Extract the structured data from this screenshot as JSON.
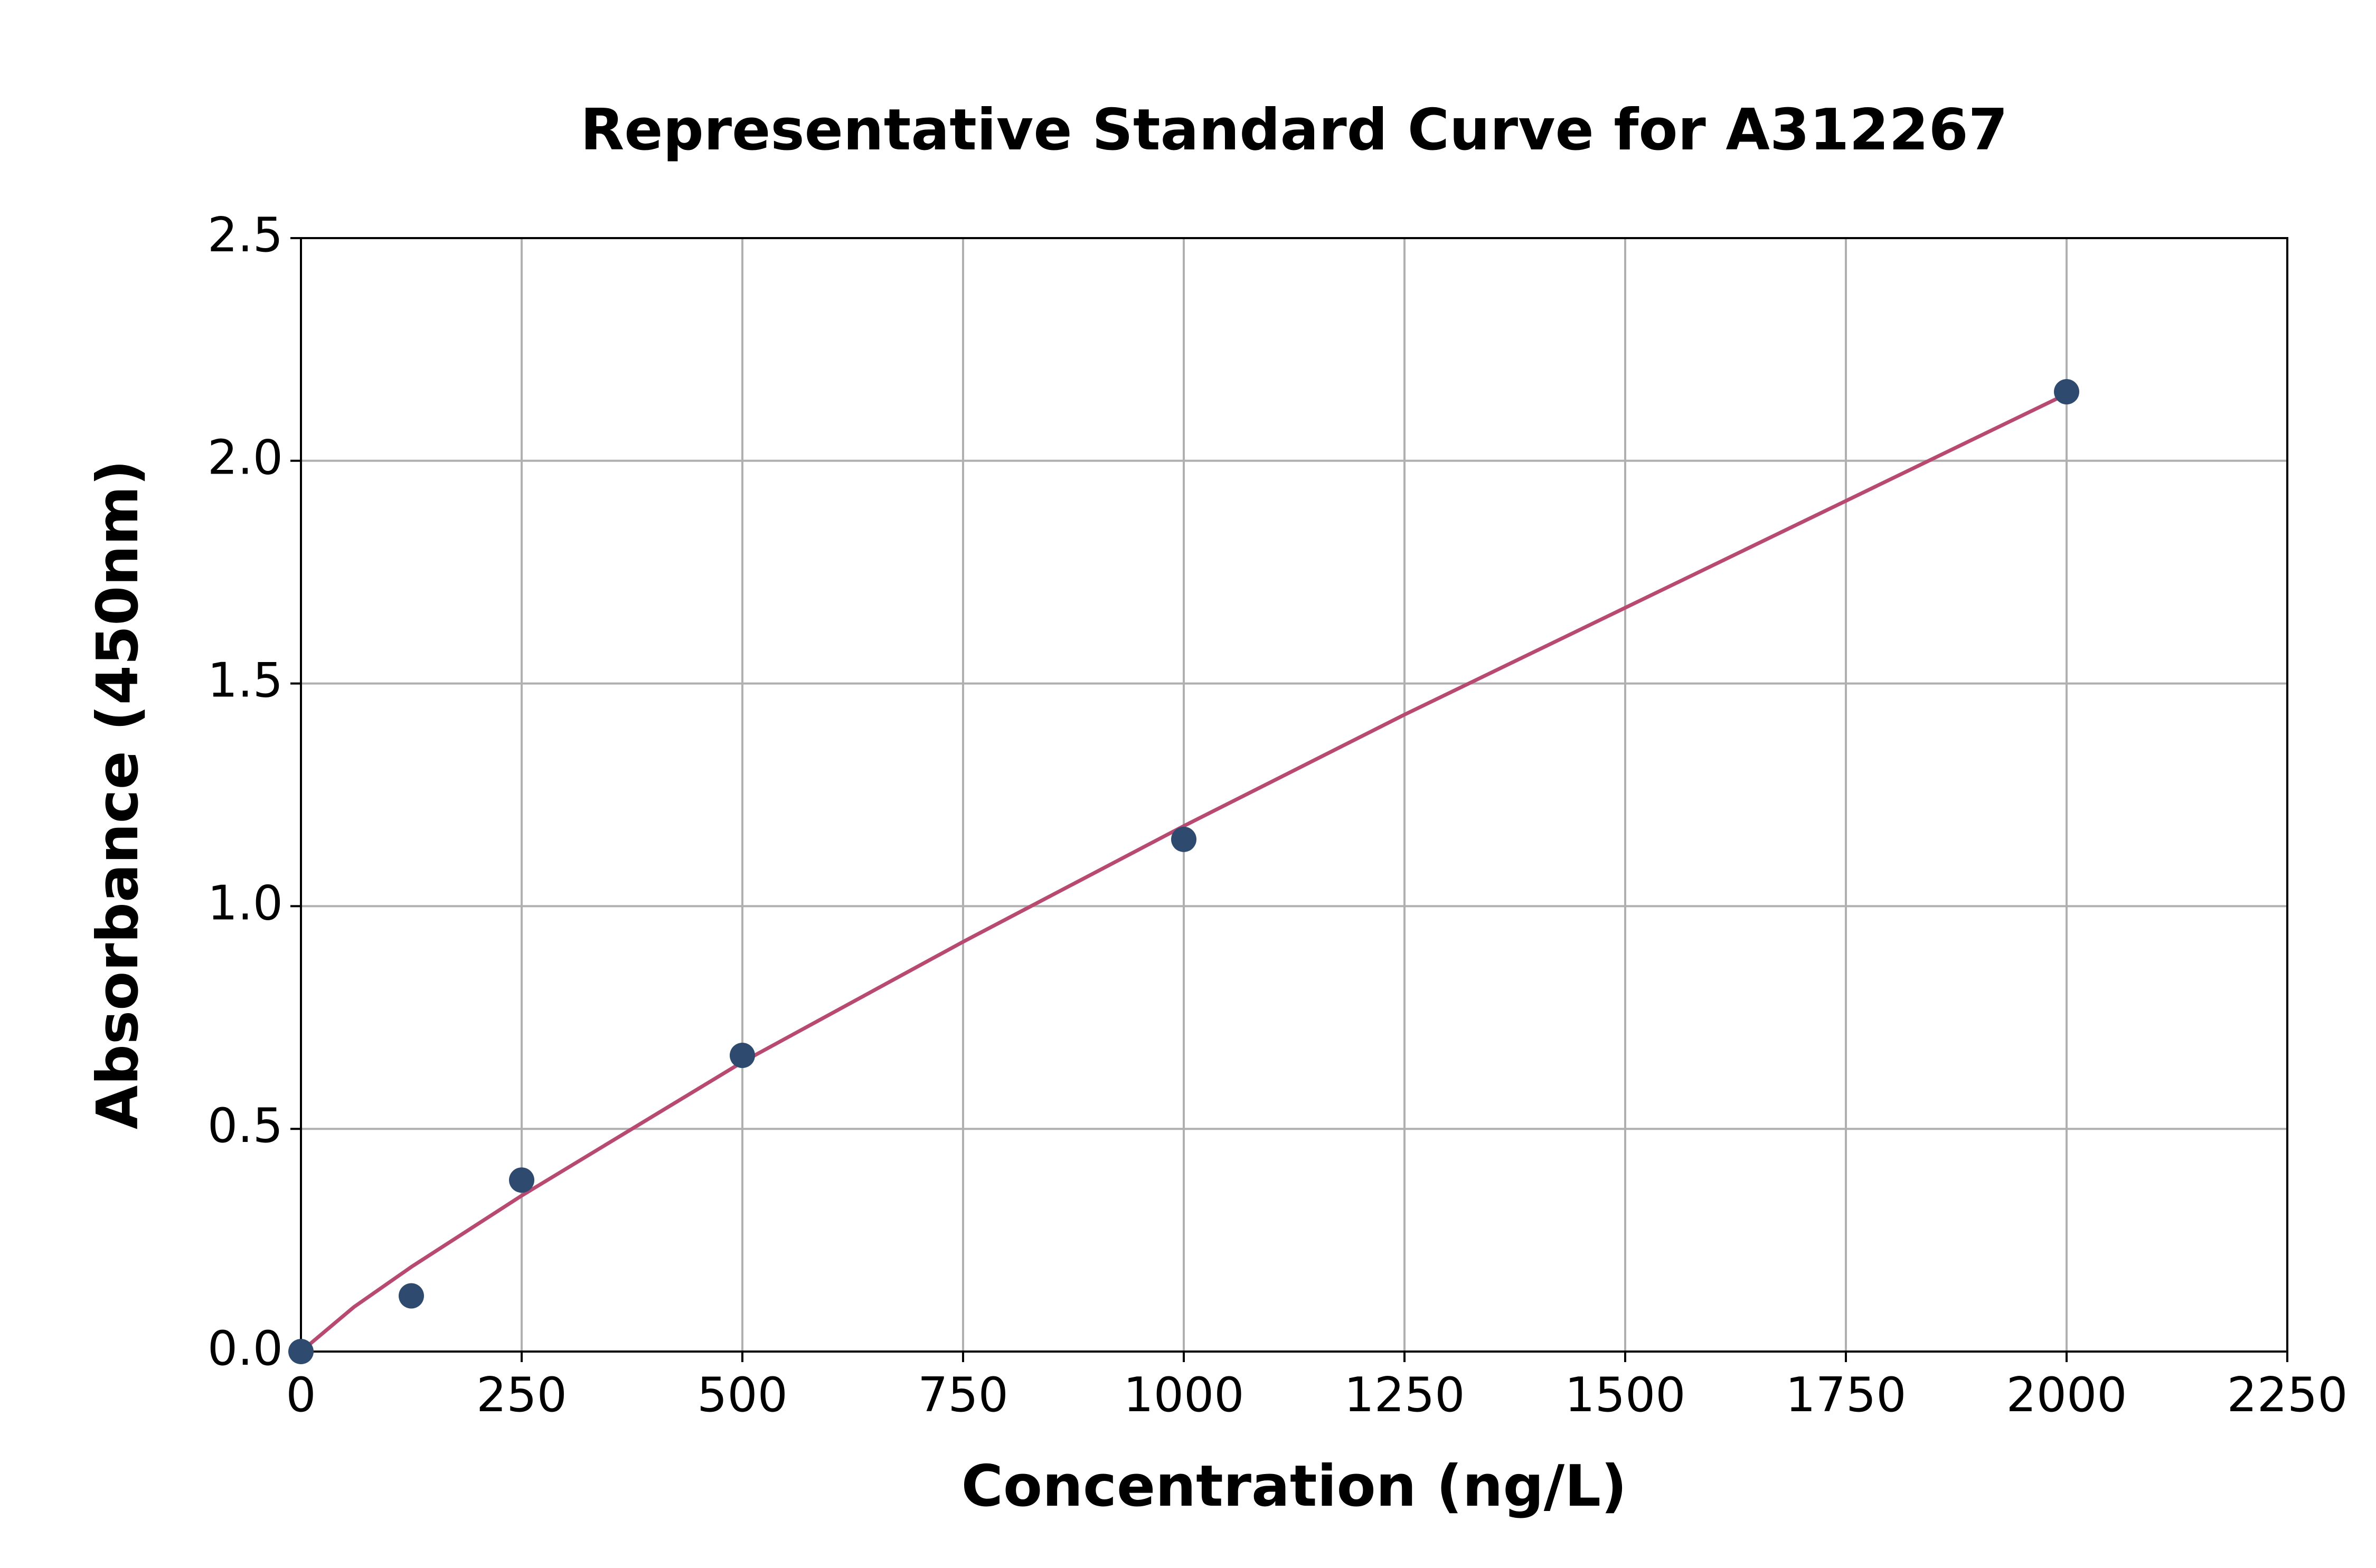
{
  "chart_data": {
    "type": "scatter",
    "title": "Representative Standard Curve for A312267",
    "xlabel": "Concentration (ng/L)",
    "ylabel": "Absorbance (450nm)",
    "x": [
      0,
      125,
      250,
      500,
      1000,
      2000
    ],
    "series": [
      {
        "color": "#2e4a6e",
        "values": [
          0,
          0.125,
          0.385,
          0.665,
          1.15,
          2.155
        ]
      }
    ],
    "curve": {
      "color": "#b84a72",
      "x": [
        0,
        60,
        125,
        250,
        500,
        750,
        1000,
        1250,
        1500,
        1750,
        2000
      ],
      "values": [
        0,
        0.1,
        0.19,
        0.35,
        0.65,
        0.92,
        1.18,
        1.43,
        1.67,
        1.91,
        2.15
      ]
    },
    "xlim": [
      0,
      2250
    ],
    "ylim": [
      0,
      2.5
    ],
    "xticks": [
      0,
      250,
      500,
      750,
      1000,
      1250,
      1500,
      1750,
      2000,
      2250
    ],
    "yticks": [
      {
        "value": 0,
        "label": "0.0"
      },
      0.5,
      {
        "value": 1,
        "label": "1.0"
      },
      1.5,
      {
        "value": 2,
        "label": "2.0"
      },
      2.5
    ],
    "grid": true
  }
}
